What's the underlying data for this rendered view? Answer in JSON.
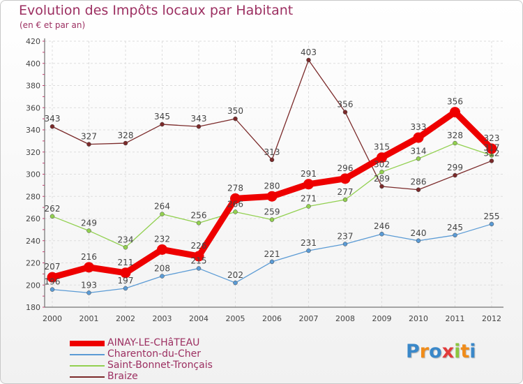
{
  "title": "Evolution des Impôts locaux par Habitant",
  "subtitle": "(en € et par an)",
  "logo": {
    "letters": [
      "P",
      "r",
      "o",
      "x",
      "i",
      "t",
      "i"
    ],
    "colors": [
      "#3a88c9",
      "#f08c1a",
      "#3a88c9",
      "#e23b3b",
      "#8cc63f",
      "#f08c1a",
      "#3a88c9"
    ]
  },
  "chart_data": {
    "type": "line",
    "title": "Evolution des Impôts locaux par Habitant",
    "ylabel": "(en € et par an)",
    "xlabel": "",
    "x": [
      "2000",
      "2001",
      "2002",
      "2003",
      "2004",
      "2005",
      "2006",
      "2007",
      "2008",
      "2009",
      "2010",
      "2011",
      "2012"
    ],
    "ylim": [
      180,
      420
    ],
    "yticks": [
      "180",
      "200",
      "220",
      "240",
      "260",
      "280",
      "300",
      "320",
      "340",
      "360",
      "380",
      "400",
      "420"
    ],
    "grid": true,
    "legend_position": "bottom-left",
    "series": [
      {
        "name": "AINAY-LE-CHâTEAU",
        "color": "#ee0000",
        "emphasis": true,
        "values": [
          207,
          216,
          211,
          232,
          226,
          278,
          280,
          291,
          296,
          315,
          333,
          356,
          323
        ],
        "labels": [
          "207",
          "216",
          "211",
          "232",
          "226",
          "278",
          "280",
          "291",
          "296",
          "315",
          "333",
          "356",
          "323"
        ]
      },
      {
        "name": "Charenton-du-Cher",
        "color": "#5b9bd5",
        "emphasis": false,
        "values": [
          196,
          193,
          197,
          208,
          215,
          202,
          221,
          231,
          237,
          246,
          240,
          245,
          255
        ],
        "labels": [
          "196",
          "193",
          "197",
          "208",
          "215",
          "202",
          "221",
          "231",
          "237",
          "246",
          "240",
          "245",
          "255"
        ]
      },
      {
        "name": "Saint-Bonnet-Tronçais",
        "color": "#92d050",
        "emphasis": false,
        "values": [
          262,
          249,
          234,
          264,
          256,
          266,
          259,
          271,
          277,
          302,
          314,
          328,
          317
        ],
        "labels": [
          "262",
          "249",
          "234",
          "264",
          "256",
          "266",
          "259",
          "271",
          "277",
          "302",
          "314",
          "328",
          "317"
        ]
      },
      {
        "name": "Braize",
        "color": "#7b2a2a",
        "emphasis": false,
        "values": [
          343,
          327,
          328,
          345,
          343,
          350,
          313,
          403,
          356,
          289,
          286,
          299,
          312
        ],
        "labels": [
          "343",
          "327",
          "328",
          "345",
          "343",
          "350",
          "313",
          "403",
          "356",
          "289",
          "286",
          "299",
          "312"
        ]
      }
    ]
  }
}
